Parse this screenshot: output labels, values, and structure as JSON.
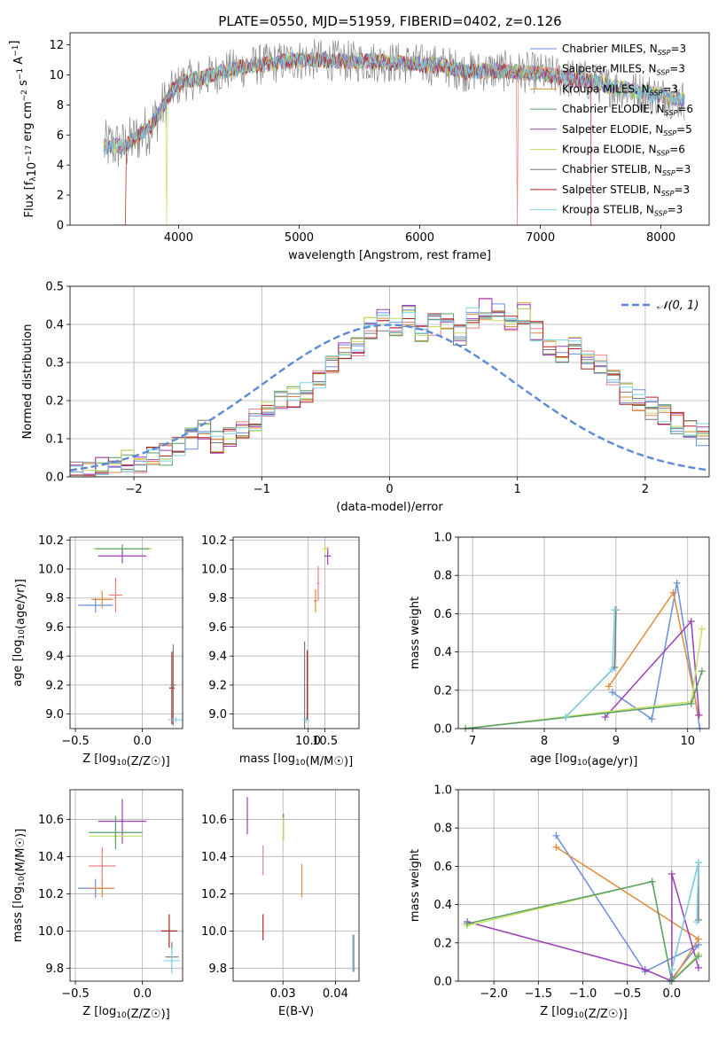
{
  "colors": {
    "chabrier_miles": "#6a8ed9",
    "salpeter_miles": "#e87f82",
    "kroupa_miles": "#e28a3a",
    "chabrier_elodie": "#5a9e6a",
    "salpeter_elodie": "#9b3fb8",
    "kroupa_elodie": "#c6e061",
    "chabrier_stelib": "#7a7a7a",
    "salpeter_stelib": "#b22222",
    "kroupa_stelib": "#7fd3e3",
    "gauss": "#5b8ad6"
  },
  "chart_data": [
    {
      "id": "spectrum",
      "type": "line",
      "title": "PLATE=0550, MJD=51959, FIBERID=0402, z=0.126",
      "xlabel": "wavelength [Angstrom, rest frame]",
      "ylabel": "Flux [f_λ 10^-17 erg cm^-2 s^-1 A^-1]",
      "xlim": [
        3100,
        8400
      ],
      "ylim": [
        0,
        12.8
      ],
      "xticks": [
        4000,
        5000,
        6000,
        7000,
        8000
      ],
      "yticks": [
        0,
        2,
        4,
        6,
        8,
        10,
        12
      ],
      "grid": false,
      "legend_position": "top-right",
      "legend": [
        {
          "main": "Chabrier MILES, N",
          "sub": "SSP",
          "tail": "=3",
          "color": "chabrier_miles"
        },
        {
          "main": "Salpeter MILES, N",
          "sub": "SSP",
          "tail": "=3",
          "color": "salpeter_miles"
        },
        {
          "main": "Kroupa MILES, N",
          "sub": "SSP",
          "tail": "=3",
          "color": "kroupa_miles"
        },
        {
          "main": "Chabrier ELODIE, N",
          "sub": "SSP",
          "tail": "=6",
          "color": "chabrier_elodie"
        },
        {
          "main": "Salpeter ELODIE, N",
          "sub": "SSP",
          "tail": "=5",
          "color": "salpeter_elodie"
        },
        {
          "main": "Kroupa ELODIE, N",
          "sub": "SSP",
          "tail": "=6",
          "color": "kroupa_elodie"
        },
        {
          "main": "Chabrier STELIB, N",
          "sub": "SSP",
          "tail": "=3",
          "color": "chabrier_stelib"
        },
        {
          "main": "Salpeter STELIB, N",
          "sub": "SSP",
          "tail": "=3",
          "color": "salpeter_stelib"
        },
        {
          "main": "Kroupa STELIB, N",
          "sub": "SSP",
          "tail": "=3",
          "color": "kroupa_stelib"
        }
      ],
      "continuum": {
        "x": [
          3380,
          3450,
          3550,
          3650,
          3750,
          3850,
          3950,
          4050,
          4200,
          4400,
          4600,
          4800,
          5000,
          5200,
          5400,
          5600,
          5800,
          6000,
          6200,
          6400,
          6600,
          6800,
          7000,
          7200,
          7400,
          7600,
          7800,
          8000,
          8200
        ],
        "y": [
          5.2,
          5.3,
          5.2,
          5.8,
          6.4,
          7.6,
          9.0,
          9.6,
          9.8,
          10.3,
          10.6,
          10.8,
          11.0,
          11.0,
          10.9,
          10.9,
          10.8,
          10.7,
          10.6,
          10.2,
          10.3,
          10.2,
          10.1,
          9.8,
          9.6,
          9.2,
          8.9,
          8.6,
          8.3
        ]
      }
    },
    {
      "id": "residuals",
      "type": "line",
      "xlabel": "(data-model)/error",
      "ylabel": "Normed distribution",
      "xlim": [
        -2.5,
        2.5
      ],
      "ylim": [
        0,
        0.5
      ],
      "xticks": [
        -2,
        -1,
        0,
        1,
        2
      ],
      "yticks": [
        0.0,
        0.1,
        0.2,
        0.3,
        0.4,
        0.5
      ],
      "grid": true,
      "legend_position": "top-right",
      "legend": [
        {
          "label": "𝒩(0, 1)",
          "color": "gauss",
          "style": "dashed"
        }
      ],
      "bin_width": 0.1,
      "histogram_bin_edges_start": -2.5,
      "histogram_base": [
        0.02,
        0.02,
        0.03,
        0.03,
        0.04,
        0.04,
        0.05,
        0.06,
        0.08,
        0.1,
        0.12,
        0.09,
        0.11,
        0.13,
        0.15,
        0.17,
        0.2,
        0.21,
        0.22,
        0.26,
        0.3,
        0.33,
        0.34,
        0.39,
        0.41,
        0.4,
        0.42,
        0.38,
        0.4,
        0.41,
        0.37,
        0.42,
        0.44,
        0.43,
        0.41,
        0.43,
        0.38,
        0.34,
        0.33,
        0.35,
        0.31,
        0.3,
        0.27,
        0.22,
        0.2,
        0.18,
        0.16,
        0.14,
        0.12,
        0.11,
        0.1,
        0.09,
        0.07,
        0.06,
        0.05,
        0.05,
        0.04,
        0.04,
        0.03,
        0.03
      ]
    },
    {
      "id": "age-vs-Z",
      "type": "scatter",
      "xlabel": "Z [log10(Z/Z☉)]",
      "ylabel": "age  [log10(age/yr)]",
      "xlim": [
        -0.54,
        0.3
      ],
      "ylim": [
        8.9,
        10.22
      ],
      "xticks": [
        -0.5,
        0.0
      ],
      "yticks": [
        9.0,
        9.2,
        9.4,
        9.6,
        9.8,
        10.0,
        10.2
      ],
      "grid": true,
      "points": [
        {
          "x": -0.35,
          "y": 9.75,
          "xerr": 0.13,
          "yerr": 0.05,
          "color": "chabrier_miles"
        },
        {
          "x": -0.3,
          "y": 9.79,
          "xerr": 0.08,
          "yerr": 0.06,
          "color": "kroupa_miles"
        },
        {
          "x": -0.2,
          "y": 9.82,
          "xerr": 0.05,
          "yerr": 0.12,
          "color": "salpeter_miles"
        },
        {
          "x": -0.15,
          "y": 10.09,
          "xerr": 0.18,
          "yerr": 0.05,
          "color": "salpeter_elodie"
        },
        {
          "x": -0.15,
          "y": 10.14,
          "xerr": 0.22,
          "yerr": 0.03,
          "color": "kroupa_elodie"
        },
        {
          "x": -0.15,
          "y": 10.14,
          "xerr": 0.2,
          "yerr": 0.03,
          "color": "chabrier_elodie"
        },
        {
          "x": 0.22,
          "y": 9.18,
          "xerr": 0.02,
          "yerr": 0.25,
          "color": "salpeter_stelib"
        },
        {
          "x": 0.23,
          "y": 9.2,
          "xerr": 0.02,
          "yerr": 0.28,
          "color": "chabrier_stelib"
        },
        {
          "x": 0.25,
          "y": 8.96,
          "xerr": 0.06,
          "yerr": 0.02,
          "color": "kroupa_stelib"
        }
      ]
    },
    {
      "id": "age-vs-mass",
      "type": "scatter",
      "xlabel": "mass [log10(M/M☉)]",
      "ylabel": "",
      "xlim": [
        7.8,
        11.5
      ],
      "ylim": [
        8.9,
        10.22
      ],
      "xticks": [
        10.0,
        10.5
      ],
      "tick_labels_x": [
        "10.0",
        "10.5"
      ],
      "yticks": [
        9.0,
        9.2,
        9.4,
        9.6,
        9.8,
        10.0,
        10.2
      ],
      "grid": true,
      "points": [
        {
          "x": 10.22,
          "y": 9.78,
          "xerr": 0.05,
          "yerr": 0.08,
          "color": "kroupa_miles"
        },
        {
          "x": 10.3,
          "y": 9.9,
          "xerr": 0.04,
          "yerr": 0.12,
          "color": "salpeter_miles"
        },
        {
          "x": 10.58,
          "y": 10.09,
          "xerr": 0.1,
          "yerr": 0.06,
          "color": "salpeter_elodie"
        },
        {
          "x": 10.5,
          "y": 10.14,
          "xerr": 0.08,
          "yerr": 0.03,
          "color": "kroupa_elodie"
        },
        {
          "x": 9.98,
          "y": 9.2,
          "xerr": 0.02,
          "yerr": 0.24,
          "color": "salpeter_stelib"
        },
        {
          "x": 9.9,
          "y": 9.2,
          "xerr": 0.02,
          "yerr": 0.3,
          "color": "chabrier_stelib"
        },
        {
          "x": 9.95,
          "y": 8.96,
          "xerr": 0.1,
          "yerr": 0.02,
          "color": "kroupa_stelib"
        }
      ]
    },
    {
      "id": "mw-vs-age",
      "type": "line",
      "xlabel": "age  [log10(age/yr)]",
      "ylabel": "mass weight",
      "xlim": [
        6.8,
        10.3
      ],
      "ylim": [
        0,
        1.0
      ],
      "xticks": [
        7,
        8,
        9,
        10
      ],
      "yticks": [
        0.0,
        0.2,
        0.4,
        0.6,
        0.8,
        1.0
      ],
      "grid": true,
      "series": [
        {
          "color": "chabrier_miles",
          "x": [
            8.95,
            9.5,
            9.85,
            10.17
          ],
          "y": [
            0.19,
            0.05,
            0.76,
            0.0
          ]
        },
        {
          "color": "kroupa_miles",
          "x": [
            8.9,
            9.8,
            10.15
          ],
          "y": [
            0.22,
            0.71,
            0.07
          ]
        },
        {
          "color": "salpeter_elodie",
          "x": [
            8.85,
            10.05,
            10.16
          ],
          "y": [
            0.06,
            0.56,
            0.07
          ]
        },
        {
          "color": "kroupa_elodie",
          "x": [
            6.9,
            10.05,
            10.2
          ],
          "y": [
            0.0,
            0.14,
            0.52
          ]
        },
        {
          "color": "chabrier_elodie",
          "x": [
            6.9,
            10.05,
            10.2
          ],
          "y": [
            0.0,
            0.13,
            0.3
          ]
        },
        {
          "color": "chabrier_stelib",
          "x": [
            8.3,
            8.98,
            9.0
          ],
          "y": [
            0.06,
            0.32,
            0.62
          ]
        },
        {
          "color": "kroupa_stelib",
          "x": [
            8.3,
            8.95,
            8.98
          ],
          "y": [
            0.06,
            0.31,
            0.62
          ]
        }
      ]
    },
    {
      "id": "mass-vs-Z",
      "type": "scatter",
      "xlabel": "Z [log10(Z/Z☉)]",
      "ylabel": "mass [log10(M/M☉)]",
      "xlim": [
        -0.54,
        0.3
      ],
      "ylim": [
        9.73,
        10.76
      ],
      "xticks": [
        -0.5,
        0.0
      ],
      "yticks": [
        9.8,
        10.0,
        10.2,
        10.4,
        10.6
      ],
      "grid": true,
      "points": [
        {
          "x": -0.35,
          "y": 10.23,
          "xerr": 0.13,
          "yerr": 0.05,
          "color": "chabrier_miles"
        },
        {
          "x": -0.3,
          "y": 10.23,
          "xerr": 0.09,
          "yerr": 0.05,
          "color": "kroupa_miles"
        },
        {
          "x": -0.3,
          "y": 10.35,
          "xerr": 0.1,
          "yerr": 0.1,
          "color": "salpeter_miles"
        },
        {
          "x": -0.15,
          "y": 10.59,
          "xerr": 0.18,
          "yerr": 0.12,
          "color": "salpeter_elodie"
        },
        {
          "x": -0.2,
          "y": 10.51,
          "xerr": 0.2,
          "yerr": 0.05,
          "color": "kroupa_elodie"
        },
        {
          "x": -0.2,
          "y": 10.53,
          "xerr": 0.2,
          "yerr": 0.09,
          "color": "chabrier_elodie"
        },
        {
          "x": 0.2,
          "y": 10.0,
          "xerr": 0.06,
          "yerr": 0.09,
          "color": "salpeter_stelib"
        },
        {
          "x": 0.22,
          "y": 9.86,
          "xerr": 0.05,
          "yerr": 0.08,
          "color": "chabrier_stelib"
        },
        {
          "x": 0.22,
          "y": 9.84,
          "xerr": 0.06,
          "yerr": 0.07,
          "color": "kroupa_stelib"
        }
      ]
    },
    {
      "id": "mass-vs-EBV",
      "type": "scatter",
      "xlabel": "E(B-V)",
      "ylabel": "",
      "xlim": [
        0.0205,
        0.0445
      ],
      "ylim": [
        9.73,
        10.76
      ],
      "xticks": [
        0.03,
        0.04
      ],
      "tick_labels_x": [
        "0.03",
        "0.04"
      ],
      "yticks": [
        9.8,
        10.0,
        10.2,
        10.4,
        10.6
      ],
      "grid": true,
      "points": [
        {
          "x": 0.0232,
          "y": 10.62,
          "xerr": 0,
          "yerr": 0.1,
          "color": "salpeter_elodie"
        },
        {
          "x": 0.0262,
          "y": 10.38,
          "xerr": 0,
          "yerr": 0.08,
          "color": "salpeter_miles"
        },
        {
          "x": 0.0262,
          "y": 10.02,
          "xerr": 0,
          "yerr": 0.07,
          "color": "salpeter_stelib"
        },
        {
          "x": 0.0301,
          "y": 10.56,
          "xerr": 0,
          "yerr": 0.07,
          "color": "chabrier_stelib"
        },
        {
          "x": 0.0301,
          "y": 10.55,
          "xerr": 0,
          "yerr": 0.06,
          "color": "kroupa_elodie"
        },
        {
          "x": 0.0336,
          "y": 10.27,
          "xerr": 0,
          "yerr": 0.09,
          "color": "kroupa_miles"
        },
        {
          "x": 0.0435,
          "y": 9.88,
          "xerr": 0,
          "yerr": 0.1,
          "color": "chabrier_stelib"
        },
        {
          "x": 0.0433,
          "y": 9.88,
          "xerr": 0,
          "yerr": 0.1,
          "color": "kroupa_stelib"
        }
      ]
    },
    {
      "id": "mw-vs-Z",
      "type": "line",
      "xlabel": "Z [log10(Z/Z☉)]",
      "ylabel": "mass weight",
      "xlim": [
        -2.4,
        0.42
      ],
      "ylim": [
        0,
        1.0
      ],
      "xticks": [
        -2.0,
        -1.5,
        -1.0,
        -0.5,
        0.0
      ],
      "yticks": [
        0.0,
        0.2,
        0.4,
        0.6,
        0.8,
        1.0
      ],
      "grid": true,
      "series": [
        {
          "color": "chabrier_miles",
          "x": [
            -1.3,
            -0.3,
            0.3,
            -0.02
          ],
          "y": [
            0.76,
            0.05,
            0.19,
            0.0
          ]
        },
        {
          "color": "kroupa_miles",
          "x": [
            -1.3,
            0.3,
            0.0
          ],
          "y": [
            0.7,
            0.22,
            0.0
          ]
        },
        {
          "color": "salpeter_elodie",
          "x": [
            -2.3,
            -0.3,
            0.0,
            0.0,
            0.3
          ],
          "y": [
            0.31,
            0.06,
            0.0,
            0.56,
            0.07
          ]
        },
        {
          "color": "kroupa_elodie",
          "x": [
            -2.3,
            -0.22,
            0.0,
            0.3
          ],
          "y": [
            0.29,
            0.52,
            0.0,
            0.14
          ]
        },
        {
          "color": "chabrier_elodie",
          "x": [
            -2.3,
            -0.22,
            0.0,
            0.3
          ],
          "y": [
            0.3,
            0.52,
            0.0,
            0.13
          ]
        },
        {
          "color": "chabrier_stelib",
          "x": [
            0.0,
            0.3,
            0.3
          ],
          "y": [
            0.06,
            0.62,
            0.32
          ]
        },
        {
          "color": "kroupa_stelib",
          "x": [
            0.0,
            0.3,
            0.28
          ],
          "y": [
            0.06,
            0.62,
            0.31
          ]
        }
      ]
    }
  ]
}
